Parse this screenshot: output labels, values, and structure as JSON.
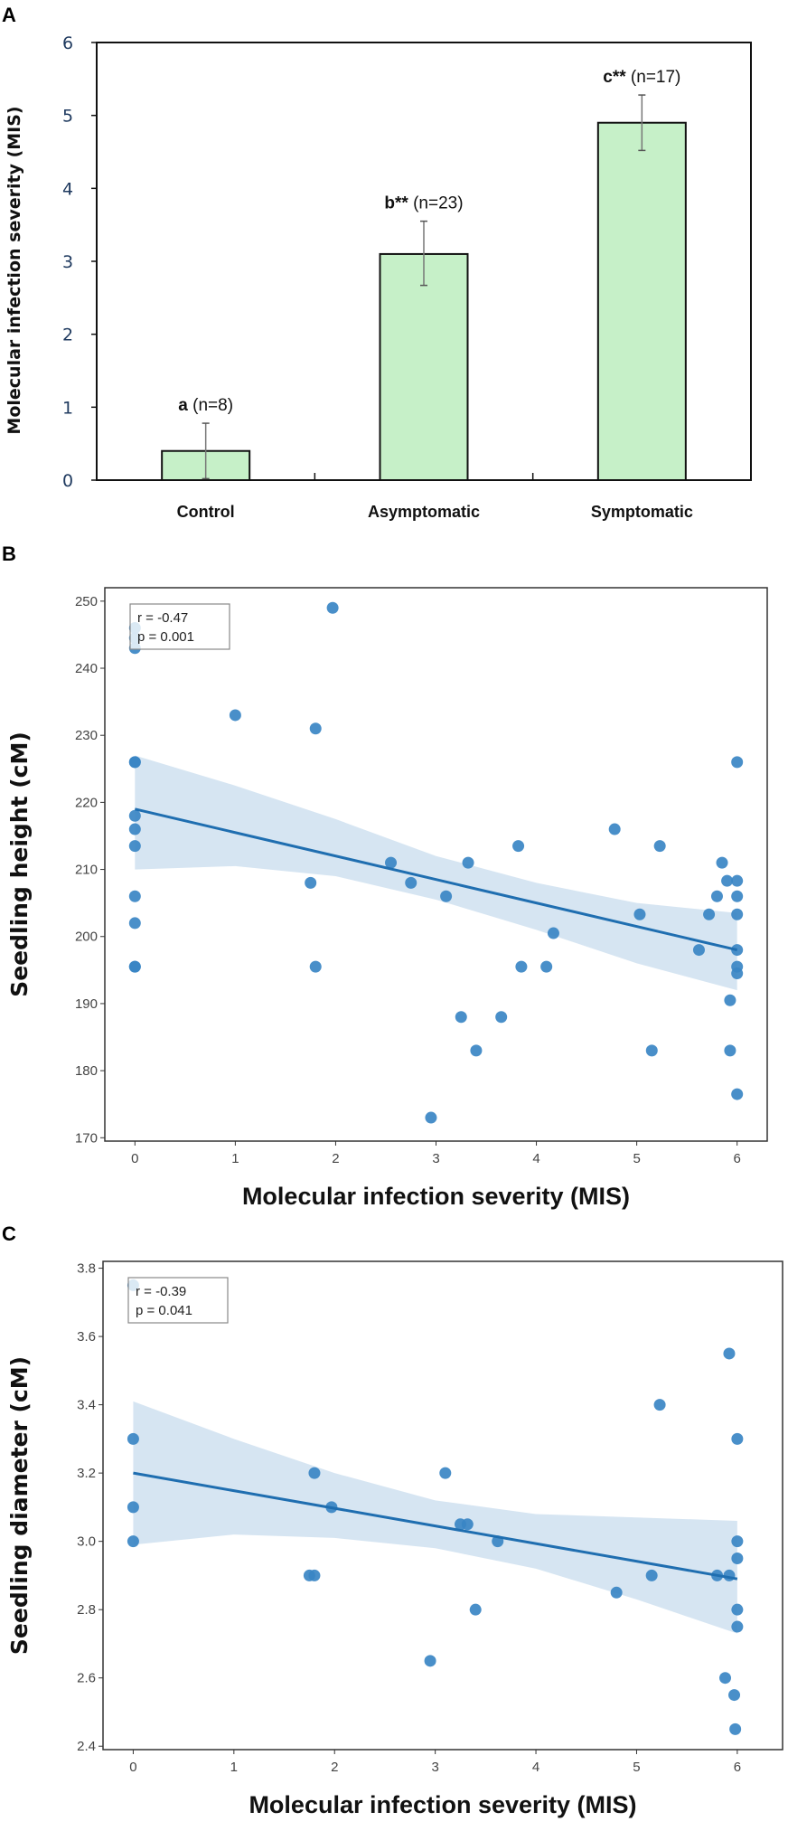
{
  "chart_data": [
    {
      "panel": "A",
      "type": "bar",
      "categories": [
        "Control",
        "Asymptomatic",
        "Symptomatic"
      ],
      "values": [
        0.4,
        3.1,
        4.9
      ],
      "error_low": [
        0.02,
        2.67,
        4.52
      ],
      "error_high": [
        0.78,
        3.55,
        5.28
      ],
      "annotations": [
        {
          "letter": "a",
          "stars": "",
          "n": "(n=8)"
        },
        {
          "letter": "b",
          "stars": "**",
          "n": "(n=23)"
        },
        {
          "letter": "c",
          "stars": "**",
          "n": "(n=17)"
        }
      ],
      "ylabel": "Molecular infection severity (MIS)",
      "xlabel": "",
      "ylim": [
        0,
        6
      ],
      "yticks": [
        0,
        1,
        2,
        3,
        4,
        5,
        6
      ],
      "bar_color": "#c6f0c8",
      "grid": false
    },
    {
      "panel": "B",
      "type": "scatter",
      "xlabel": "Molecular infection severity (MIS)",
      "ylabel": "Seedling height (cM)",
      "xlim": [
        -0.3,
        6.3
      ],
      "ylim": [
        169.5,
        252
      ],
      "xticks": [
        0,
        1,
        2,
        3,
        4,
        5,
        6
      ],
      "yticks": [
        170,
        180,
        190,
        200,
        210,
        220,
        230,
        240,
        250
      ],
      "stats": {
        "r": "r = -0.47",
        "p": "p = 0.001"
      },
      "stats_position": "top-left",
      "points": [
        [
          0,
          246
        ],
        [
          0,
          244.5
        ],
        [
          0,
          243
        ],
        [
          0,
          226
        ],
        [
          0,
          226
        ],
        [
          0,
          218
        ],
        [
          0,
          216
        ],
        [
          0,
          213.5
        ],
        [
          0,
          206
        ],
        [
          0,
          202
        ],
        [
          0,
          195.5
        ],
        [
          0,
          195.5
        ],
        [
          1,
          233
        ],
        [
          1.75,
          208
        ],
        [
          1.8,
          231
        ],
        [
          1.8,
          195.5
        ],
        [
          1.97,
          249
        ],
        [
          2.55,
          211
        ],
        [
          2.75,
          208
        ],
        [
          3.1,
          206
        ],
        [
          3.32,
          211
        ],
        [
          3.25,
          188
        ],
        [
          2.95,
          173
        ],
        [
          3.4,
          183
        ],
        [
          3.65,
          188
        ],
        [
          3.82,
          213.5
        ],
        [
          3.85,
          195.5
        ],
        [
          4.1,
          195.5
        ],
        [
          4.17,
          200.5
        ],
        [
          4.78,
          216
        ],
        [
          5.03,
          203.3
        ],
        [
          5.15,
          183
        ],
        [
          5.23,
          213.5
        ],
        [
          5.62,
          198
        ],
        [
          5.72,
          203.3
        ],
        [
          5.8,
          206
        ],
        [
          5.85,
          211
        ],
        [
          5.9,
          208.3
        ],
        [
          5.93,
          190.5
        ],
        [
          5.93,
          183
        ],
        [
          6,
          226
        ],
        [
          6,
          208.3
        ],
        [
          6,
          206
        ],
        [
          6,
          203.3
        ],
        [
          6,
          198
        ],
        [
          6,
          195.5
        ],
        [
          6,
          194.5
        ],
        [
          6,
          176.5
        ]
      ],
      "fit": {
        "x": [
          0,
          6
        ],
        "y": [
          219,
          198
        ]
      },
      "ci": {
        "x": [
          0,
          1,
          2,
          3,
          4,
          5,
          6
        ],
        "lower": [
          210,
          210.5,
          209,
          205.5,
          201,
          196,
          192
        ],
        "upper": [
          227,
          222.5,
          217.5,
          212,
          208,
          205,
          203.5
        ]
      },
      "point_color": "#3a86c4",
      "line_color": "#1f6eb0",
      "band_color": "#cfe0f0"
    },
    {
      "panel": "C",
      "type": "scatter",
      "xlabel": "Molecular infection severity (MIS)",
      "ylabel": "Seedling diameter (cM)",
      "xlim": [
        -0.3,
        6.45
      ],
      "ylim": [
        2.39,
        3.82
      ],
      "xticks": [
        0,
        1,
        2,
        3,
        4,
        5,
        6
      ],
      "yticks": [
        2.4,
        2.6,
        2.8,
        3.0,
        3.2,
        3.4,
        3.6,
        3.8
      ],
      "stats": {
        "r": "r = -0.39",
        "p": "p = 0.041"
      },
      "stats_position": "top-left",
      "points": [
        [
          0,
          3.75
        ],
        [
          0,
          3.3
        ],
        [
          0,
          3.1
        ],
        [
          0,
          3.0
        ],
        [
          1.75,
          2.9
        ],
        [
          1.8,
          2.9
        ],
        [
          1.8,
          3.2
        ],
        [
          1.97,
          3.1
        ],
        [
          2.95,
          2.65
        ],
        [
          3.1,
          3.2
        ],
        [
          3.25,
          3.05
        ],
        [
          3.32,
          3.05
        ],
        [
          3.4,
          2.8
        ],
        [
          3.62,
          3.0
        ],
        [
          4.8,
          2.85
        ],
        [
          5.15,
          2.9
        ],
        [
          5.23,
          3.4
        ],
        [
          5.8,
          2.9
        ],
        [
          5.88,
          2.6
        ],
        [
          5.92,
          3.55
        ],
        [
          5.92,
          2.9
        ],
        [
          5.97,
          2.55
        ],
        [
          5.98,
          2.45
        ],
        [
          6,
          3.3
        ],
        [
          6,
          3.0
        ],
        [
          6,
          2.95
        ],
        [
          6,
          2.8
        ],
        [
          6,
          2.75
        ]
      ],
      "fit": {
        "x": [
          0,
          6
        ],
        "y": [
          3.2,
          2.89
        ]
      },
      "ci": {
        "x": [
          0,
          1,
          2,
          3,
          4,
          5,
          6
        ],
        "lower": [
          2.99,
          3.02,
          3.01,
          2.98,
          2.92,
          2.83,
          2.73
        ],
        "upper": [
          3.41,
          3.3,
          3.2,
          3.12,
          3.08,
          3.07,
          3.06
        ]
      },
      "point_color": "#3a86c4",
      "line_color": "#1f6eb0",
      "band_color": "#cfe0f0"
    }
  ],
  "panel_letters": [
    "A",
    "B",
    "C"
  ]
}
